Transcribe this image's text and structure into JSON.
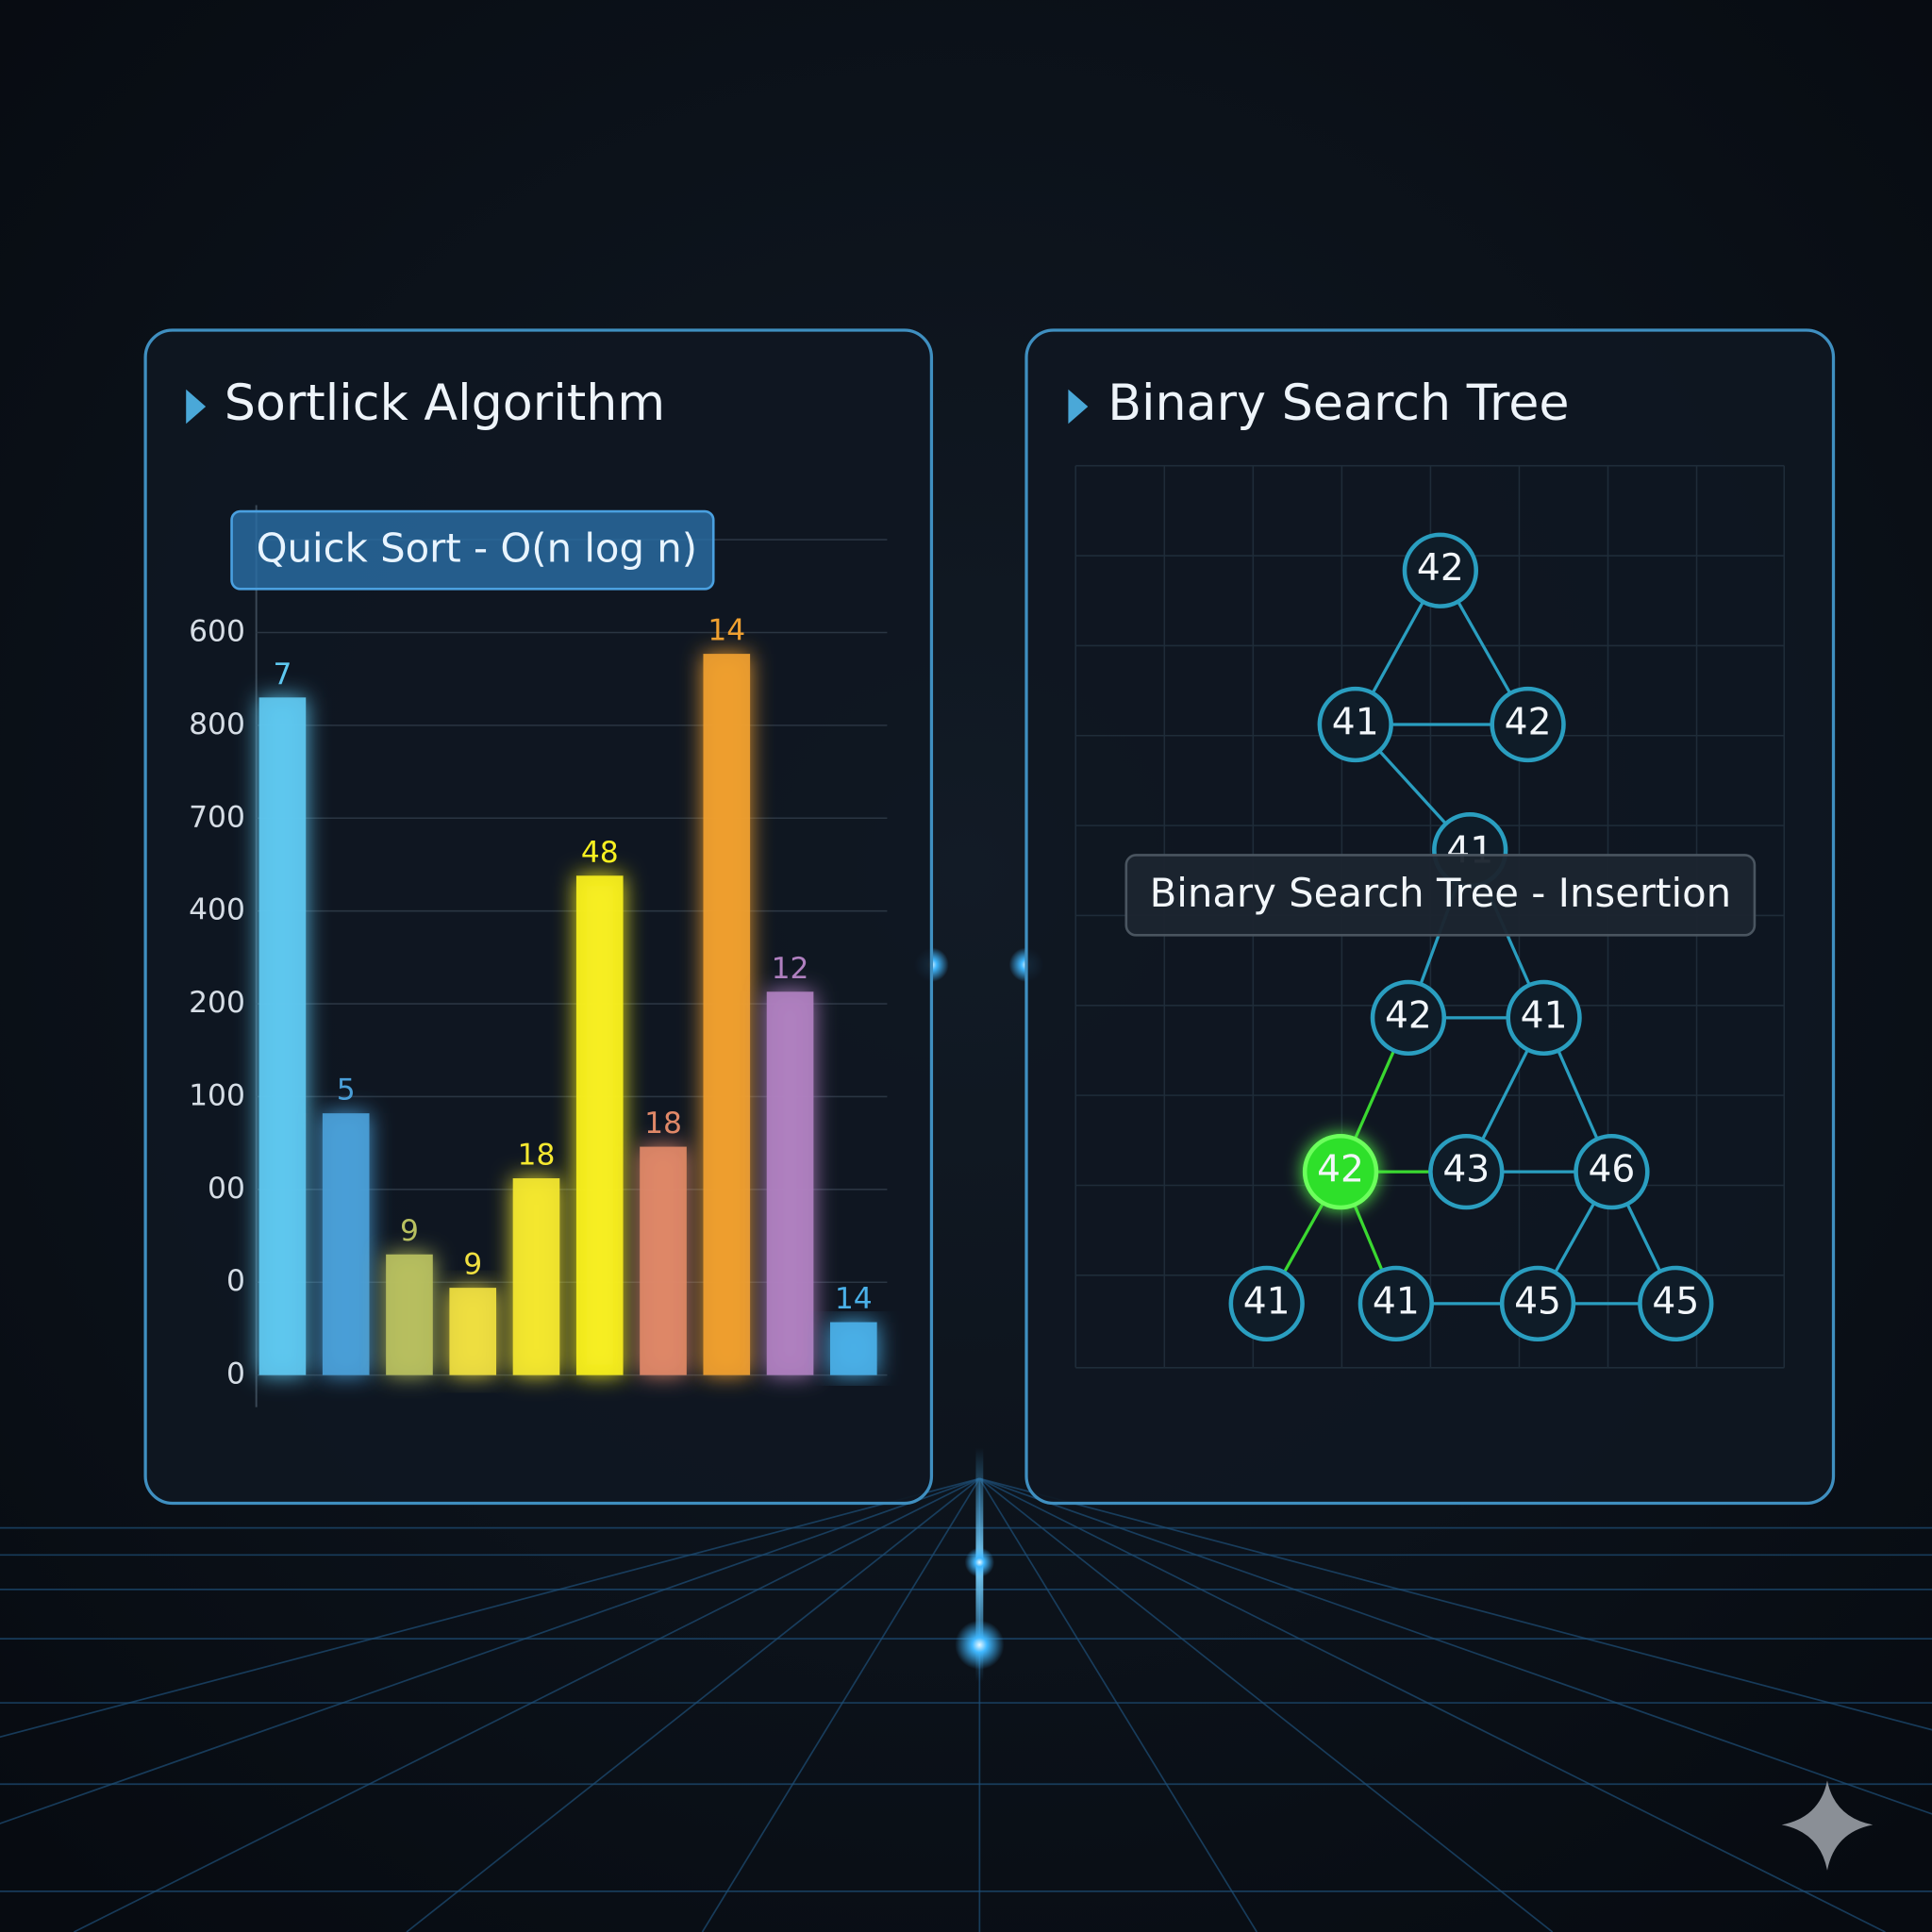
{
  "left_panel": {
    "title": "Sortlick Algorithm",
    "badge": "Quick Sort - O(n log n)",
    "chart_data": {
      "type": "bar",
      "values": [
        7.3,
        2.82,
        1.3,
        0.94,
        2.12,
        5.38,
        2.46,
        7.77,
        4.13,
        0.57
      ],
      "bar_labels": [
        "7",
        "5",
        "9",
        "9",
        "18",
        "48",
        "18",
        "14",
        "12",
        "14"
      ],
      "colors": [
        "#5ec8f0",
        "#4a9fd8",
        "#b8c060",
        "#f0e040",
        "#f5e830",
        "#f8f020",
        "#e08868",
        "#f0a030",
        "#b080c0",
        "#4ab0e8"
      ],
      "ylim": [
        0,
        9
      ],
      "yticks": [
        0,
        {
          "value": 1,
          "label": "0"
        },
        {
          "value": 2,
          "label": "00"
        },
        {
          "value": 3,
          "label": "100"
        },
        {
          "value": 4,
          "label": "200"
        },
        {
          "value": 5,
          "label": "400"
        },
        {
          "value": 6,
          "label": "700"
        },
        {
          "value": 7,
          "label": "800"
        },
        {
          "value": 8,
          "label": "600"
        }
      ],
      "grid": true
    }
  },
  "right_panel": {
    "title": "Binary Search Tree",
    "badge": "Binary Search Tree - Insertion",
    "nodes": [
      "42",
      "41",
      "42",
      "41",
      "42",
      "41",
      "42",
      "43",
      "46",
      "41",
      "41",
      "45",
      "45"
    ]
  }
}
